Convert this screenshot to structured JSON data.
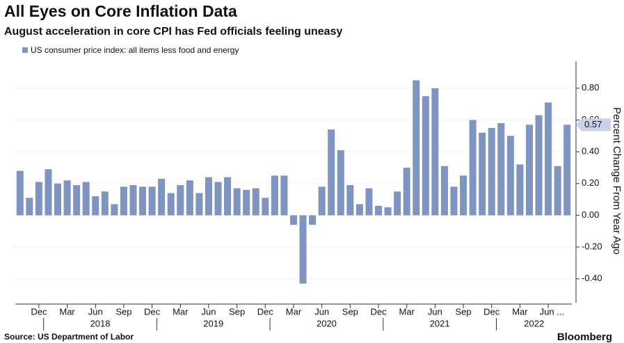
{
  "chart_data": {
    "type": "bar",
    "title": "All Eyes on Core Inflation Data",
    "subtitle": "August acceleration in core CPI has Fed officials feeling uneasy",
    "y_axis_label": "Percent Change From Year Ago",
    "source": "Source: US Department of Labor",
    "brand": "Bloomberg",
    "last_value_label": "0.57",
    "legend_position": "top-left",
    "categories": [
      null,
      null,
      "Dec",
      null,
      null,
      "Mar",
      null,
      null,
      "Jun",
      null,
      null,
      "Sep",
      null,
      null,
      "Dec",
      null,
      null,
      "Mar",
      null,
      null,
      "Jun",
      null,
      null,
      "Sep",
      null,
      null,
      "Dec",
      null,
      null,
      "Mar",
      null,
      null,
      "Jun",
      null,
      null,
      "Sep",
      null,
      null,
      "Dec",
      null,
      null,
      "Mar",
      null,
      null,
      "Jun",
      null,
      null,
      "Sep",
      null,
      null,
      "Dec",
      null,
      null,
      "Mar",
      null,
      null,
      "Jun ...",
      null,
      null
    ],
    "years": [
      "2018",
      "2019",
      "2020",
      "2021",
      "2022"
    ],
    "series": [
      {
        "name": "US consumer price index: all items less food and energy",
        "color": "#8094c2",
        "values": [
          0.28,
          0.11,
          0.21,
          0.29,
          0.2,
          0.22,
          0.19,
          0.21,
          0.12,
          0.15,
          0.07,
          0.18,
          0.19,
          0.18,
          0.18,
          0.23,
          0.14,
          0.19,
          0.22,
          0.14,
          0.24,
          0.21,
          0.24,
          0.17,
          0.16,
          0.17,
          0.11,
          0.25,
          0.25,
          -0.06,
          -0.43,
          -0.06,
          0.18,
          0.54,
          0.41,
          0.19,
          0.07,
          0.17,
          0.06,
          0.05,
          0.15,
          0.3,
          0.85,
          0.75,
          0.8,
          0.31,
          0.18,
          0.25,
          0.6,
          0.52,
          0.55,
          0.58,
          0.5,
          0.32,
          0.57,
          0.63,
          0.71,
          0.31,
          0.57
        ]
      }
    ],
    "ylim": [
      -0.55,
      0.97
    ],
    "yticks": [
      {
        "value": -0.4,
        "label": "-0.40"
      },
      {
        "value": -0.2,
        "label": "-0.20"
      },
      {
        "value": 0,
        "label": "0.00"
      },
      {
        "value": 0.2,
        "label": "0.20"
      },
      {
        "value": 0.4,
        "label": "0.40"
      },
      {
        "value": 0.6,
        "label": "0.60"
      },
      {
        "value": 0.8,
        "label": "0.80"
      }
    ],
    "grid": true
  }
}
